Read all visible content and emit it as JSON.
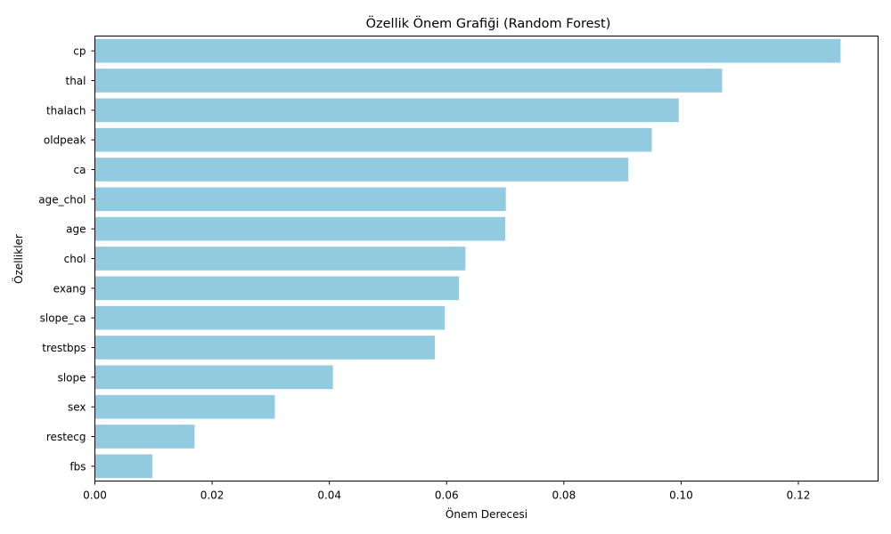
{
  "chart_data": {
    "type": "bar",
    "orientation": "horizontal",
    "title": "Özellik Önem Grafiği (Random Forest)",
    "xlabel": "Önem Derecesi",
    "ylabel": "Özellikler",
    "categories": [
      "cp",
      "thal",
      "thalach",
      "oldpeak",
      "ca",
      "age_chol",
      "age",
      "chol",
      "exang",
      "slope_ca",
      "trestbps",
      "slope",
      "sex",
      "restecg",
      "fbs"
    ],
    "values": [
      0.1272,
      0.107,
      0.0996,
      0.095,
      0.091,
      0.0701,
      0.07,
      0.0632,
      0.0621,
      0.0597,
      0.058,
      0.0406,
      0.0307,
      0.017,
      0.0098
    ],
    "xlim": [
      0,
      0.1336
    ],
    "xticks": [
      "0.00",
      "0.02",
      "0.04",
      "0.06",
      "0.08",
      "0.10",
      "0.12"
    ],
    "xtick_values": [
      0,
      0.02,
      0.04,
      0.06,
      0.08,
      0.1,
      0.12
    ],
    "bar_color": "#92cbe0",
    "grid": false,
    "legend": "none"
  }
}
